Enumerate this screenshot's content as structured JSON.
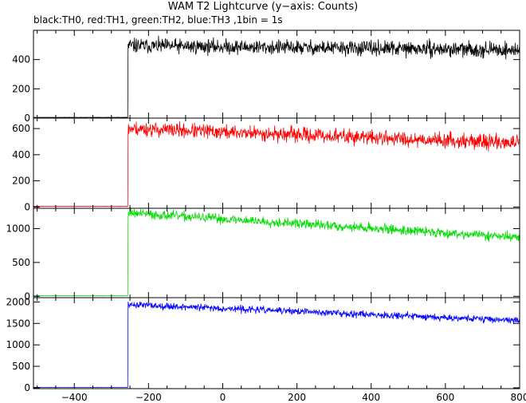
{
  "title": "WAM T2 Lightcurve (y−axis: Counts)",
  "subtitle": "black:TH0, red:TH1, green:TH2, blue:TH3 ,1bin = 1s",
  "chart_data": {
    "type": "line",
    "x_range": [
      -510,
      800
    ],
    "x_ticks": [
      -400,
      -200,
      0,
      200,
      400,
      600,
      800
    ],
    "x_tick_labels": [
      "−400",
      "−200",
      "0",
      "200",
      "400",
      "600",
      "800"
    ],
    "onset_x": -255,
    "panels": [
      {
        "series_label": "TH0",
        "color": "#000000",
        "ylim": [
          0,
          600
        ],
        "y_ticks": [
          0,
          200,
          400
        ],
        "pre_level": 5,
        "post_start": 495,
        "post_end": 465,
        "noise": 25,
        "seed": 11
      },
      {
        "series_label": "TH1",
        "color": "#ff0000",
        "ylim": [
          -10,
          680
        ],
        "y_ticks": [
          0,
          200,
          400,
          600
        ],
        "pre_level": 5,
        "post_start": 600,
        "post_end": 490,
        "noise": 28,
        "seed": 23
      },
      {
        "series_label": "TH2",
        "color": "#00dd00",
        "ylim": [
          -20,
          1300
        ],
        "y_ticks": [
          0,
          500,
          1000
        ],
        "pre_level": 8,
        "post_start": 1230,
        "post_end": 870,
        "noise": 35,
        "seed": 37
      },
      {
        "series_label": "TH3",
        "color": "#0000ff",
        "ylim": [
          -20,
          2100
        ],
        "y_ticks": [
          0,
          500,
          1000,
          1500,
          2000
        ],
        "pre_level": 10,
        "post_start": 1940,
        "post_end": 1570,
        "noise": 40,
        "seed": 53
      }
    ]
  }
}
